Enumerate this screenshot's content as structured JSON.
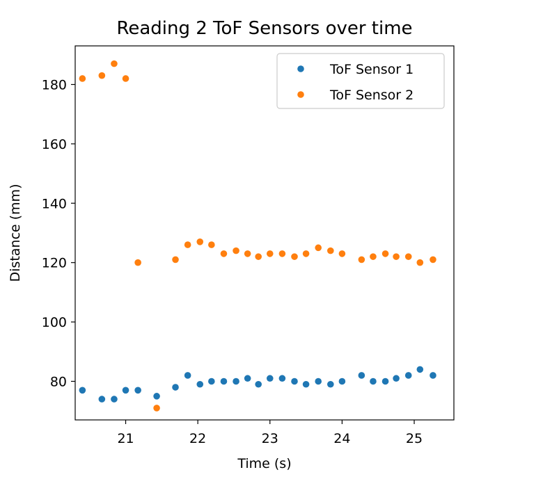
{
  "chart_data": {
    "type": "scatter",
    "title": "Reading 2 ToF Sensors over time",
    "xlabel": "Time (s)",
    "ylabel": "Distance (mm)",
    "xlim": [
      20.3,
      25.55
    ],
    "ylim": [
      67,
      193
    ],
    "x_ticks": [
      21,
      22,
      23,
      24,
      25
    ],
    "y_ticks": [
      80,
      100,
      120,
      140,
      160,
      180
    ],
    "grid": false,
    "legend_position": "top-right",
    "series": [
      {
        "name": "ToF Sensor 1",
        "color": "#1f77b4",
        "points": [
          [
            20.4,
            77
          ],
          [
            20.67,
            74
          ],
          [
            20.84,
            74
          ],
          [
            21.0,
            77
          ],
          [
            21.17,
            77
          ],
          [
            21.43,
            75
          ],
          [
            21.69,
            78
          ],
          [
            21.86,
            82
          ],
          [
            22.03,
            79
          ],
          [
            22.19,
            80
          ],
          [
            22.36,
            80
          ],
          [
            22.53,
            80
          ],
          [
            22.69,
            81
          ],
          [
            22.84,
            79
          ],
          [
            23.0,
            81
          ],
          [
            23.17,
            81
          ],
          [
            23.34,
            80
          ],
          [
            23.5,
            79
          ],
          [
            23.67,
            80
          ],
          [
            23.84,
            79
          ],
          [
            24.0,
            80
          ],
          [
            24.27,
            82
          ],
          [
            24.43,
            80
          ],
          [
            24.6,
            80
          ],
          [
            24.75,
            81
          ],
          [
            24.92,
            82
          ],
          [
            25.08,
            84
          ],
          [
            25.26,
            82
          ]
        ]
      },
      {
        "name": "ToF Sensor 2",
        "color": "#ff7f0e",
        "points": [
          [
            20.4,
            182
          ],
          [
            20.67,
            183
          ],
          [
            20.84,
            187
          ],
          [
            21.0,
            182
          ],
          [
            21.17,
            120
          ],
          [
            21.43,
            71
          ],
          [
            21.69,
            121
          ],
          [
            21.86,
            126
          ],
          [
            22.03,
            127
          ],
          [
            22.19,
            126
          ],
          [
            22.36,
            123
          ],
          [
            22.53,
            124
          ],
          [
            22.69,
            123
          ],
          [
            22.84,
            122
          ],
          [
            23.0,
            123
          ],
          [
            23.17,
            123
          ],
          [
            23.34,
            122
          ],
          [
            23.5,
            123
          ],
          [
            23.67,
            125
          ],
          [
            23.84,
            124
          ],
          [
            24.0,
            123
          ],
          [
            24.27,
            121
          ],
          [
            24.43,
            122
          ],
          [
            24.6,
            123
          ],
          [
            24.75,
            122
          ],
          [
            24.92,
            122
          ],
          [
            25.08,
            120
          ],
          [
            25.26,
            121
          ]
        ]
      }
    ]
  }
}
